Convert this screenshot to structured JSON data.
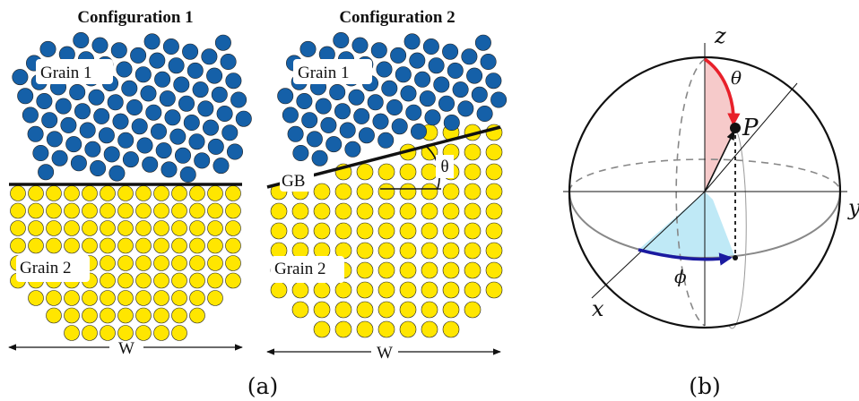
{
  "panel_a": {
    "config1": {
      "title": "Configuration 1",
      "grain1_label": "Grain 1",
      "grain2_label": "Grain 2",
      "width_label": "W"
    },
    "config2": {
      "title": "Configuration 2",
      "grain1_label": "Grain 1",
      "grain2_label": "Grain 2",
      "gb_label": "GB",
      "angle_label": "θ",
      "width_label": "W"
    },
    "caption": "(a)"
  },
  "panel_b": {
    "axis_x": "x",
    "axis_y": "y",
    "axis_z": "z",
    "point_label": "P",
    "theta_label": "θ",
    "phi_label": "ϕ",
    "caption": "(b)"
  },
  "colors": {
    "grain1": "#1560a8",
    "grain2": "#ffe600",
    "theta_arc": "#e8202a",
    "theta_fill": "#f6caca",
    "phi_arc": "#1a1aa0",
    "phi_fill": "#bfe9f6"
  }
}
